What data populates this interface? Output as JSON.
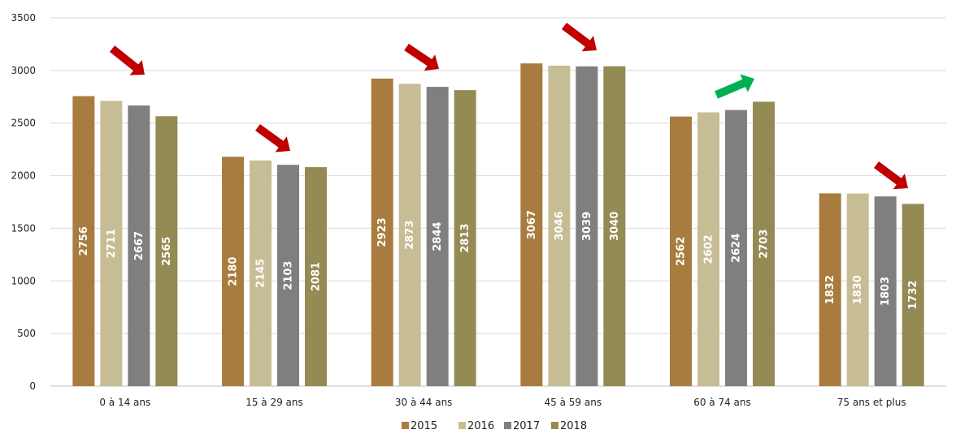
{
  "chart_data": {
    "type": "bar",
    "categories": [
      "0 à 14 ans",
      "15 à 29 ans",
      "30 à 44 ans",
      "45 à 59 ans",
      "60 à 74 ans",
      "75 ans et plus"
    ],
    "series": [
      {
        "name": "2015",
        "color": "#A87C3F",
        "values": [
          2756,
          2180,
          2923,
          3067,
          2562,
          1832
        ]
      },
      {
        "name": "2016",
        "color": "#C6BD95",
        "values": [
          2711,
          2145,
          2873,
          3046,
          2602,
          1830
        ]
      },
      {
        "name": "2017",
        "color": "#7F7F7F",
        "values": [
          2667,
          2103,
          2844,
          3039,
          2624,
          1803
        ]
      },
      {
        "name": "2018",
        "color": "#948A54",
        "values": [
          2565,
          2081,
          2813,
          3040,
          2703,
          1732
        ]
      }
    ],
    "y_ticks": [
      0,
      500,
      1000,
      1500,
      2000,
      2500,
      3000,
      3500
    ],
    "ylim": [
      0,
      3500
    ],
    "grid": true,
    "legend_position": "bottom",
    "trend_arrows": [
      {
        "category": "0 à 14 ans",
        "direction": "down",
        "color": "#C00000"
      },
      {
        "category": "15 à 29 ans",
        "direction": "down",
        "color": "#C00000"
      },
      {
        "category": "30 à 44 ans",
        "direction": "down",
        "color": "#C00000"
      },
      {
        "category": "45 à 59 ans",
        "direction": "down",
        "color": "#C00000"
      },
      {
        "category": "60 à 74 ans",
        "direction": "up",
        "color": "#00B050"
      },
      {
        "category": "75 ans et plus",
        "direction": "down",
        "color": "#C00000"
      }
    ]
  }
}
